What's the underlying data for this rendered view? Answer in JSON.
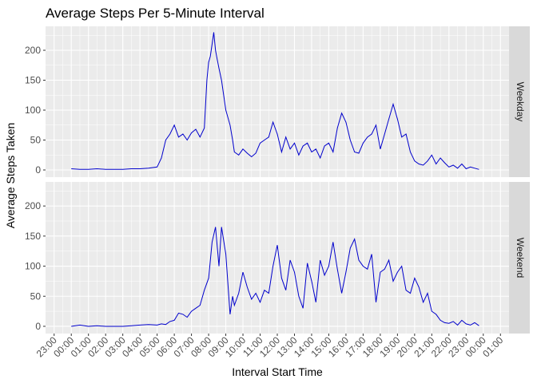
{
  "chart_data": {
    "type": "line",
    "title": "Average Steps Per 5-Minute Interval",
    "xlabel": "Interval Start Time",
    "ylabel": "Average Steps Taken",
    "x_tick_labels": [
      "23:00",
      "00:00",
      "01:00",
      "02:00",
      "03:00",
      "04:00",
      "05:00",
      "06:00",
      "07:00",
      "08:00",
      "09:00",
      "10:00",
      "11:00",
      "12:00",
      "13:00",
      "14:00",
      "15:00",
      "16:00",
      "17:00",
      "18:00",
      "19:00",
      "20:00",
      "21:00",
      "22:00",
      "23:00",
      "00:00",
      "01:00"
    ],
    "x_tick_hours": [
      -1,
      0,
      1,
      2,
      3,
      4,
      5,
      6,
      7,
      8,
      9,
      10,
      11,
      12,
      13,
      14,
      15,
      16,
      17,
      18,
      19,
      20,
      21,
      22,
      23,
      24,
      25
    ],
    "xlim_hours": [
      -1.5,
      25.5
    ],
    "y_ticks": [
      0,
      50,
      100,
      150,
      200
    ],
    "ylim": [
      -12,
      240
    ],
    "grid": true,
    "line_color": "#0000CC",
    "panel_background": "#EBEBEB",
    "strip_background": "#D9D9D9",
    "series": [
      {
        "name": "Weekday",
        "x_hours": [
          0,
          0.5,
          1,
          1.5,
          2,
          2.5,
          3,
          3.5,
          4,
          4.5,
          5,
          5.25,
          5.5,
          5.75,
          6,
          6.25,
          6.5,
          6.75,
          7,
          7.25,
          7.5,
          7.75,
          7.9,
          8,
          8.1,
          8.2,
          8.3,
          8.4,
          8.5,
          8.6,
          8.75,
          9,
          9.25,
          9.4,
          9.5,
          9.75,
          10,
          10.25,
          10.5,
          10.75,
          11,
          11.25,
          11.5,
          11.75,
          12,
          12.25,
          12.5,
          12.75,
          13,
          13.25,
          13.5,
          13.75,
          14,
          14.25,
          14.5,
          14.75,
          15,
          15.25,
          15.5,
          15.75,
          16,
          16.25,
          16.5,
          16.75,
          17,
          17.25,
          17.5,
          17.75,
          18,
          18.25,
          18.5,
          18.75,
          19,
          19.25,
          19.5,
          19.75,
          20,
          20.25,
          20.5,
          20.75,
          21,
          21.25,
          21.5,
          21.75,
          22,
          22.25,
          22.5,
          22.75,
          23,
          23.25,
          23.5,
          23.75
        ],
        "values": [
          2,
          1,
          1,
          2,
          1,
          1,
          1,
          2,
          2,
          3,
          5,
          20,
          50,
          60,
          75,
          55,
          60,
          50,
          62,
          68,
          55,
          70,
          150,
          180,
          190,
          210,
          230,
          200,
          185,
          170,
          150,
          100,
          75,
          50,
          30,
          25,
          35,
          28,
          22,
          28,
          45,
          50,
          55,
          80,
          60,
          30,
          55,
          35,
          45,
          25,
          40,
          45,
          30,
          35,
          20,
          40,
          45,
          30,
          70,
          95,
          80,
          50,
          30,
          28,
          45,
          55,
          60,
          75,
          35,
          60,
          85,
          110,
          85,
          55,
          60,
          30,
          15,
          10,
          8,
          15,
          25,
          10,
          20,
          12,
          5,
          8,
          3,
          10,
          2,
          5,
          3,
          1
        ]
      },
      {
        "name": "Weekend",
        "x_hours": [
          0,
          0.5,
          1,
          1.5,
          2,
          2.5,
          3,
          3.5,
          4,
          4.5,
          5,
          5.25,
          5.5,
          5.75,
          6,
          6.25,
          6.5,
          6.75,
          7,
          7.25,
          7.5,
          7.75,
          8,
          8.2,
          8.4,
          8.6,
          8.75,
          9,
          9.25,
          9.4,
          9.5,
          9.75,
          10,
          10.25,
          10.5,
          10.75,
          11,
          11.25,
          11.5,
          11.75,
          12,
          12.25,
          12.5,
          12.75,
          13,
          13.25,
          13.5,
          13.75,
          14,
          14.25,
          14.5,
          14.75,
          15,
          15.25,
          15.5,
          15.75,
          16,
          16.25,
          16.5,
          16.75,
          17,
          17.25,
          17.5,
          17.75,
          18,
          18.25,
          18.5,
          18.75,
          19,
          19.25,
          19.5,
          19.75,
          20,
          20.25,
          20.5,
          20.75,
          21,
          21.25,
          21.5,
          21.75,
          22,
          22.25,
          22.5,
          22.75,
          23,
          23.25,
          23.5,
          23.75
        ],
        "values": [
          0,
          2,
          0,
          1,
          0,
          0,
          0,
          1,
          2,
          3,
          2,
          4,
          3,
          8,
          10,
          22,
          20,
          15,
          25,
          30,
          35,
          60,
          80,
          140,
          165,
          100,
          165,
          120,
          20,
          50,
          35,
          55,
          90,
          65,
          45,
          55,
          40,
          60,
          55,
          100,
          135,
          80,
          60,
          110,
          90,
          50,
          30,
          105,
          75,
          40,
          110,
          85,
          100,
          140,
          95,
          55,
          90,
          130,
          145,
          110,
          100,
          95,
          120,
          40,
          90,
          95,
          110,
          75,
          90,
          100,
          60,
          55,
          80,
          65,
          40,
          55,
          25,
          20,
          10,
          6,
          5,
          8,
          2,
          10,
          4,
          2,
          6,
          1
        ]
      }
    ]
  }
}
